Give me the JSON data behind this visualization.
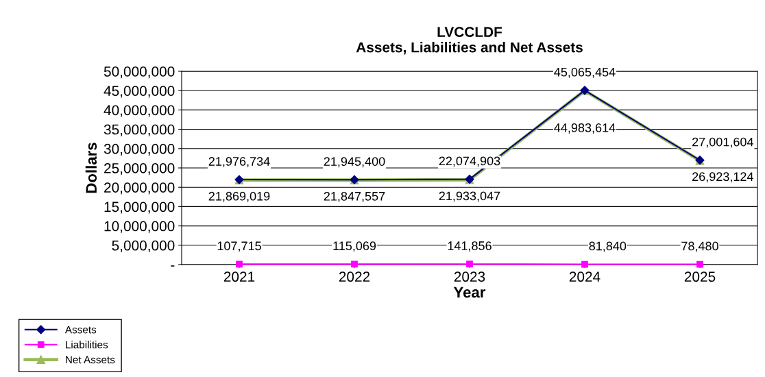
{
  "chart_data": {
    "type": "line",
    "title": "LVCCLDF\nAssets, Liabilities and Net Assets",
    "xlabel": "Year",
    "ylabel": "Dollars",
    "categories": [
      "2021",
      "2022",
      "2023",
      "2024",
      "2025"
    ],
    "series": [
      {
        "name": "Assets",
        "color": "#000080",
        "marker": "diamond",
        "values": [
          21976734,
          21945400,
          22074903,
          45065454,
          27001604
        ],
        "value_labels": [
          "21,976,734",
          "21,945,400",
          "22,074,903",
          "45,065,454",
          "27,001,604"
        ]
      },
      {
        "name": "Liabilities",
        "color": "#ff00ff",
        "marker": "square",
        "values": [
          107715,
          115069,
          141856,
          81840,
          78480
        ],
        "value_labels": [
          "107,715",
          "115,069",
          "141,856",
          "81,840",
          "78,480"
        ]
      },
      {
        "name": "Net Assets",
        "color": "#9bbb59",
        "marker": "triangle",
        "values": [
          21869019,
          21847557,
          21933047,
          44983614,
          26923124
        ],
        "value_labels": [
          "21,869,019",
          "21,847,557",
          "21,933,047",
          "44,983,614",
          "26,923,124"
        ]
      }
    ],
    "ylim": [
      0,
      50000000
    ],
    "yticks": [
      {
        "value": 0,
        "label": "-"
      },
      {
        "value": 5000000,
        "label": "5,000,000"
      },
      {
        "value": 10000000,
        "label": "10,000,000"
      },
      {
        "value": 15000000,
        "label": "15,000,000"
      },
      {
        "value": 20000000,
        "label": "20,000,000"
      },
      {
        "value": 25000000,
        "label": "25,000,000"
      },
      {
        "value": 30000000,
        "label": "30,000,000"
      },
      {
        "value": 35000000,
        "label": "35,000,000"
      },
      {
        "value": 40000000,
        "label": "40,000,000"
      },
      {
        "value": 45000000,
        "label": "45,000,000"
      },
      {
        "value": 50000000,
        "label": "50,000,000"
      }
    ],
    "grid": "y",
    "legend": "bottom left",
    "line_style": "solid"
  }
}
